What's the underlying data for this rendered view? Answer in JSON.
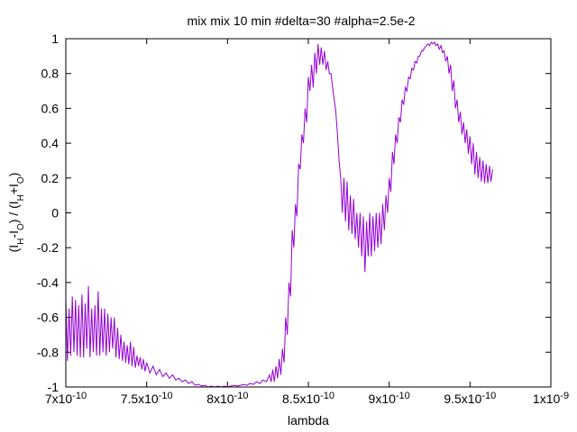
{
  "chart_data": {
    "type": "line",
    "title": "mix mix 10 min #delta=30 #alpha=2.5e-2",
    "xlabel": "lambda",
    "ylabel": {
      "open": "(I",
      "sub1": "H",
      "mid1": "-I",
      "sub2": "O",
      "mid2": ") / (I",
      "sub3": "H",
      "mid3": "+I",
      "sub4": "O",
      "close": ")"
    },
    "xlim": [
      7e-10,
      1e-09
    ],
    "ylim": [
      -1,
      1
    ],
    "xticks": [
      {
        "value": 7e-10,
        "mant": "7x10",
        "exp": "-10"
      },
      {
        "value": 7.5e-10,
        "mant": "7.5x10",
        "exp": "-10"
      },
      {
        "value": 8e-10,
        "mant": "8x10",
        "exp": "-10"
      },
      {
        "value": 8.5e-10,
        "mant": "8.5x10",
        "exp": "-10"
      },
      {
        "value": 9e-10,
        "mant": "9x10",
        "exp": "-10"
      },
      {
        "value": 9.5e-10,
        "mant": "9.5x10",
        "exp": "-10"
      },
      {
        "value": 1e-09,
        "mant": "1x10",
        "exp": "-9"
      }
    ],
    "yticks": [
      {
        "value": -1,
        "label": "-1"
      },
      {
        "value": -0.8,
        "label": "-0.8"
      },
      {
        "value": -0.6,
        "label": "-0.6"
      },
      {
        "value": -0.4,
        "label": "-0.4"
      },
      {
        "value": -0.2,
        "label": "-0.2"
      },
      {
        "value": 0,
        "label": "0"
      },
      {
        "value": 0.2,
        "label": "0.2"
      },
      {
        "value": 0.4,
        "label": "0.4"
      },
      {
        "value": 0.6,
        "label": "0.6"
      },
      {
        "value": 0.8,
        "label": "0.8"
      },
      {
        "value": 1,
        "label": "1"
      }
    ],
    "grid": false,
    "legend": "none",
    "series": [
      {
        "color": "#9400d3",
        "points": [
          [
            7e-10,
            -0.5
          ],
          [
            7.01e-10,
            -0.85
          ],
          [
            7.02e-10,
            -0.55
          ],
          [
            7.03e-10,
            -0.82
          ],
          [
            7.04e-10,
            -0.48
          ],
          [
            7.05e-10,
            -0.8
          ],
          [
            7.06e-10,
            -0.5
          ],
          [
            7.07e-10,
            -0.82
          ],
          [
            7.08e-10,
            -0.53
          ],
          [
            7.09e-10,
            -0.83
          ],
          [
            7.1e-10,
            -0.47
          ],
          [
            7.11e-10,
            -0.83
          ],
          [
            7.12e-10,
            -0.52
          ],
          [
            7.13e-10,
            -0.78
          ],
          [
            7.14e-10,
            -0.42
          ],
          [
            7.15e-10,
            -0.83
          ],
          [
            7.16e-10,
            -0.55
          ],
          [
            7.17e-10,
            -0.8
          ],
          [
            7.18e-10,
            -0.53
          ],
          [
            7.19e-10,
            -0.82
          ],
          [
            7.2e-10,
            -0.45
          ],
          [
            7.21e-10,
            -0.82
          ],
          [
            7.22e-10,
            -0.55
          ],
          [
            7.23e-10,
            -0.8
          ],
          [
            7.24e-10,
            -0.55
          ],
          [
            7.25e-10,
            -0.82
          ],
          [
            7.26e-10,
            -0.58
          ],
          [
            7.27e-10,
            -0.8
          ],
          [
            7.28e-10,
            -0.6
          ],
          [
            7.29e-10,
            -0.78
          ],
          [
            7.3e-10,
            -0.6
          ],
          [
            7.31e-10,
            -0.83
          ],
          [
            7.32e-10,
            -0.66
          ],
          [
            7.33e-10,
            -0.84
          ],
          [
            7.34e-10,
            -0.7
          ],
          [
            7.35e-10,
            -0.85
          ],
          [
            7.36e-10,
            -0.74
          ],
          [
            7.37e-10,
            -0.86
          ],
          [
            7.38e-10,
            -0.76
          ],
          [
            7.39e-10,
            -0.87
          ],
          [
            7.4e-10,
            -0.74
          ],
          [
            7.41e-10,
            -0.88
          ],
          [
            7.42e-10,
            -0.77
          ],
          [
            7.43e-10,
            -0.89
          ],
          [
            7.44e-10,
            -0.82
          ],
          [
            7.45e-10,
            -0.88
          ],
          [
            7.46e-10,
            -0.83
          ],
          [
            7.47e-10,
            -0.9
          ],
          [
            7.48e-10,
            -0.84
          ],
          [
            7.49e-10,
            -0.91
          ],
          [
            7.5e-10,
            -0.86
          ],
          [
            7.52e-10,
            -0.92
          ],
          [
            7.54e-10,
            -0.88
          ],
          [
            7.56e-10,
            -0.93
          ],
          [
            7.58e-10,
            -0.9
          ],
          [
            7.6e-10,
            -0.94
          ],
          [
            7.62e-10,
            -0.92
          ],
          [
            7.64e-10,
            -0.95
          ],
          [
            7.66e-10,
            -0.93
          ],
          [
            7.68e-10,
            -0.96
          ],
          [
            7.7e-10,
            -0.95
          ],
          [
            7.72e-10,
            -0.97
          ],
          [
            7.74e-10,
            -0.96
          ],
          [
            7.76e-10,
            -0.98
          ],
          [
            7.78e-10,
            -0.97
          ],
          [
            7.8e-10,
            -0.99
          ],
          [
            7.82e-10,
            -0.985
          ],
          [
            7.84e-10,
            -0.995
          ],
          [
            7.86e-10,
            -0.99
          ],
          [
            7.88e-10,
            -1.0
          ],
          [
            7.9e-10,
            -0.995
          ],
          [
            7.92e-10,
            -1.0
          ],
          [
            7.94e-10,
            -0.995
          ],
          [
            7.96e-10,
            -1.0
          ],
          [
            7.98e-10,
            -0.995
          ],
          [
            8e-10,
            -1.0
          ],
          [
            8.02e-10,
            -0.995
          ],
          [
            8.04e-10,
            -0.99
          ],
          [
            8.06e-10,
            -0.995
          ],
          [
            8.08e-10,
            -0.99
          ],
          [
            8.1e-10,
            -0.985
          ],
          [
            8.12e-10,
            -0.99
          ],
          [
            8.14e-10,
            -0.98
          ],
          [
            8.16e-10,
            -0.985
          ],
          [
            8.18e-10,
            -0.97
          ],
          [
            8.2e-10,
            -0.98
          ],
          [
            8.22e-10,
            -0.96
          ],
          [
            8.24e-10,
            -0.97
          ],
          [
            8.26e-10,
            -0.93
          ],
          [
            8.27e-10,
            -0.97
          ],
          [
            8.28e-10,
            -0.9
          ],
          [
            8.29e-10,
            -0.97
          ],
          [
            8.3e-10,
            -0.88
          ],
          [
            8.31e-10,
            -0.95
          ],
          [
            8.32e-10,
            -0.84
          ],
          [
            8.33e-10,
            -0.93
          ],
          [
            8.34e-10,
            -0.78
          ],
          [
            8.35e-10,
            -0.86
          ],
          [
            8.36e-10,
            -0.6
          ],
          [
            8.37e-10,
            -0.7
          ],
          [
            8.38e-10,
            -0.4
          ],
          [
            8.39e-10,
            -0.48
          ],
          [
            8.4e-10,
            -0.1
          ],
          [
            8.41e-10,
            -0.2
          ],
          [
            8.42e-10,
            0.05
          ],
          [
            8.43e-10,
            -0.02
          ],
          [
            8.44e-10,
            0.28
          ],
          [
            8.45e-10,
            0.25
          ],
          [
            8.46e-10,
            0.45
          ],
          [
            8.47e-10,
            0.4
          ],
          [
            8.48e-10,
            0.6
          ],
          [
            8.49e-10,
            0.52
          ],
          [
            8.5e-10,
            0.78
          ],
          [
            8.51e-10,
            0.7
          ],
          [
            8.52e-10,
            0.85
          ],
          [
            8.53e-10,
            0.72
          ],
          [
            8.54e-10,
            0.92
          ],
          [
            8.55e-10,
            0.8
          ],
          [
            8.56e-10,
            0.97
          ],
          [
            8.57e-10,
            0.85
          ],
          [
            8.58e-10,
            0.95
          ],
          [
            8.59e-10,
            0.85
          ],
          [
            8.6e-10,
            0.93
          ],
          [
            8.61e-10,
            0.82
          ],
          [
            8.62e-10,
            0.87
          ],
          [
            8.63e-10,
            0.8
          ],
          [
            8.64e-10,
            0.8
          ],
          [
            8.65e-10,
            0.72
          ],
          [
            8.66e-10,
            0.65
          ],
          [
            8.67e-10,
            0.58
          ],
          [
            8.68e-10,
            0.45
          ],
          [
            8.69e-10,
            0.3
          ],
          [
            8.7e-10,
            0.2
          ],
          [
            8.71e-10,
            0.0
          ],
          [
            8.72e-10,
            0.2
          ],
          [
            8.73e-10,
            -0.05
          ],
          [
            8.74e-10,
            0.18
          ],
          [
            8.75e-10,
            -0.1
          ],
          [
            8.76e-10,
            0.1
          ],
          [
            8.77e-10,
            -0.12
          ],
          [
            8.78e-10,
            0.08
          ],
          [
            8.79e-10,
            -0.15
          ],
          [
            8.8e-10,
            0.0
          ],
          [
            8.81e-10,
            -0.2
          ],
          [
            8.82e-10,
            0.0
          ],
          [
            8.83e-10,
            -0.25
          ],
          [
            8.84e-10,
            -0.02
          ],
          [
            8.85e-10,
            -0.34
          ],
          [
            8.86e-10,
            -0.05
          ],
          [
            8.87e-10,
            -0.25
          ],
          [
            8.88e-10,
            0.0
          ],
          [
            8.89e-10,
            -0.25
          ],
          [
            8.9e-10,
            -0.02
          ],
          [
            8.91e-10,
            -0.22
          ],
          [
            8.92e-10,
            0.0
          ],
          [
            8.93e-10,
            -0.2
          ],
          [
            8.94e-10,
            0.0
          ],
          [
            8.95e-10,
            -0.18
          ],
          [
            8.96e-10,
            0.05
          ],
          [
            8.97e-10,
            -0.1
          ],
          [
            8.98e-10,
            0.1
          ],
          [
            8.99e-10,
            0.0
          ],
          [
            9e-10,
            0.2
          ],
          [
            9.01e-10,
            0.12
          ],
          [
            9.02e-10,
            0.35
          ],
          [
            9.03e-10,
            0.28
          ],
          [
            9.04e-10,
            0.45
          ],
          [
            9.05e-10,
            0.4
          ],
          [
            9.06e-10,
            0.55
          ],
          [
            9.07e-10,
            0.52
          ],
          [
            9.08e-10,
            0.65
          ],
          [
            9.09e-10,
            0.62
          ],
          [
            9.1e-10,
            0.72
          ],
          [
            9.11e-10,
            0.7
          ],
          [
            9.12e-10,
            0.78
          ],
          [
            9.13e-10,
            0.77
          ],
          [
            9.14e-10,
            0.83
          ],
          [
            9.15e-10,
            0.82
          ],
          [
            9.16e-10,
            0.87
          ],
          [
            9.17e-10,
            0.86
          ],
          [
            9.18e-10,
            0.9
          ],
          [
            9.19e-10,
            0.9
          ],
          [
            9.2e-10,
            0.93
          ],
          [
            9.21e-10,
            0.93
          ],
          [
            9.22e-10,
            0.95
          ],
          [
            9.23e-10,
            0.96
          ],
          [
            9.24e-10,
            0.97
          ],
          [
            9.25e-10,
            0.96
          ],
          [
            9.26e-10,
            0.98
          ],
          [
            9.27e-10,
            0.97
          ],
          [
            9.28e-10,
            0.98
          ],
          [
            9.29e-10,
            0.96
          ],
          [
            9.3e-10,
            0.97
          ],
          [
            9.31e-10,
            0.94
          ],
          [
            9.32e-10,
            0.96
          ],
          [
            9.33e-10,
            0.92
          ],
          [
            9.34e-10,
            0.93
          ],
          [
            9.35e-10,
            0.87
          ],
          [
            9.36e-10,
            0.9
          ],
          [
            9.37e-10,
            0.8
          ],
          [
            9.38e-10,
            0.85
          ],
          [
            9.39e-10,
            0.7
          ],
          [
            9.4e-10,
            0.76
          ],
          [
            9.41e-10,
            0.6
          ],
          [
            9.42e-10,
            0.65
          ],
          [
            9.43e-10,
            0.52
          ],
          [
            9.44e-10,
            0.58
          ],
          [
            9.45e-10,
            0.45
          ],
          [
            9.46e-10,
            0.52
          ],
          [
            9.47e-10,
            0.4
          ],
          [
            9.48e-10,
            0.48
          ],
          [
            9.49e-10,
            0.34
          ],
          [
            9.5e-10,
            0.44
          ],
          [
            9.51e-10,
            0.28
          ],
          [
            9.52e-10,
            0.4
          ],
          [
            9.53e-10,
            0.22
          ],
          [
            9.54e-10,
            0.35
          ],
          [
            9.55e-10,
            0.2
          ],
          [
            9.56e-10,
            0.32
          ],
          [
            9.57e-10,
            0.18
          ],
          [
            9.58e-10,
            0.3
          ],
          [
            9.59e-10,
            0.17
          ],
          [
            9.6e-10,
            0.28
          ],
          [
            9.61e-10,
            0.17
          ],
          [
            9.62e-10,
            0.27
          ],
          [
            9.63e-10,
            0.18
          ],
          [
            9.64e-10,
            0.25
          ]
        ]
      }
    ]
  }
}
